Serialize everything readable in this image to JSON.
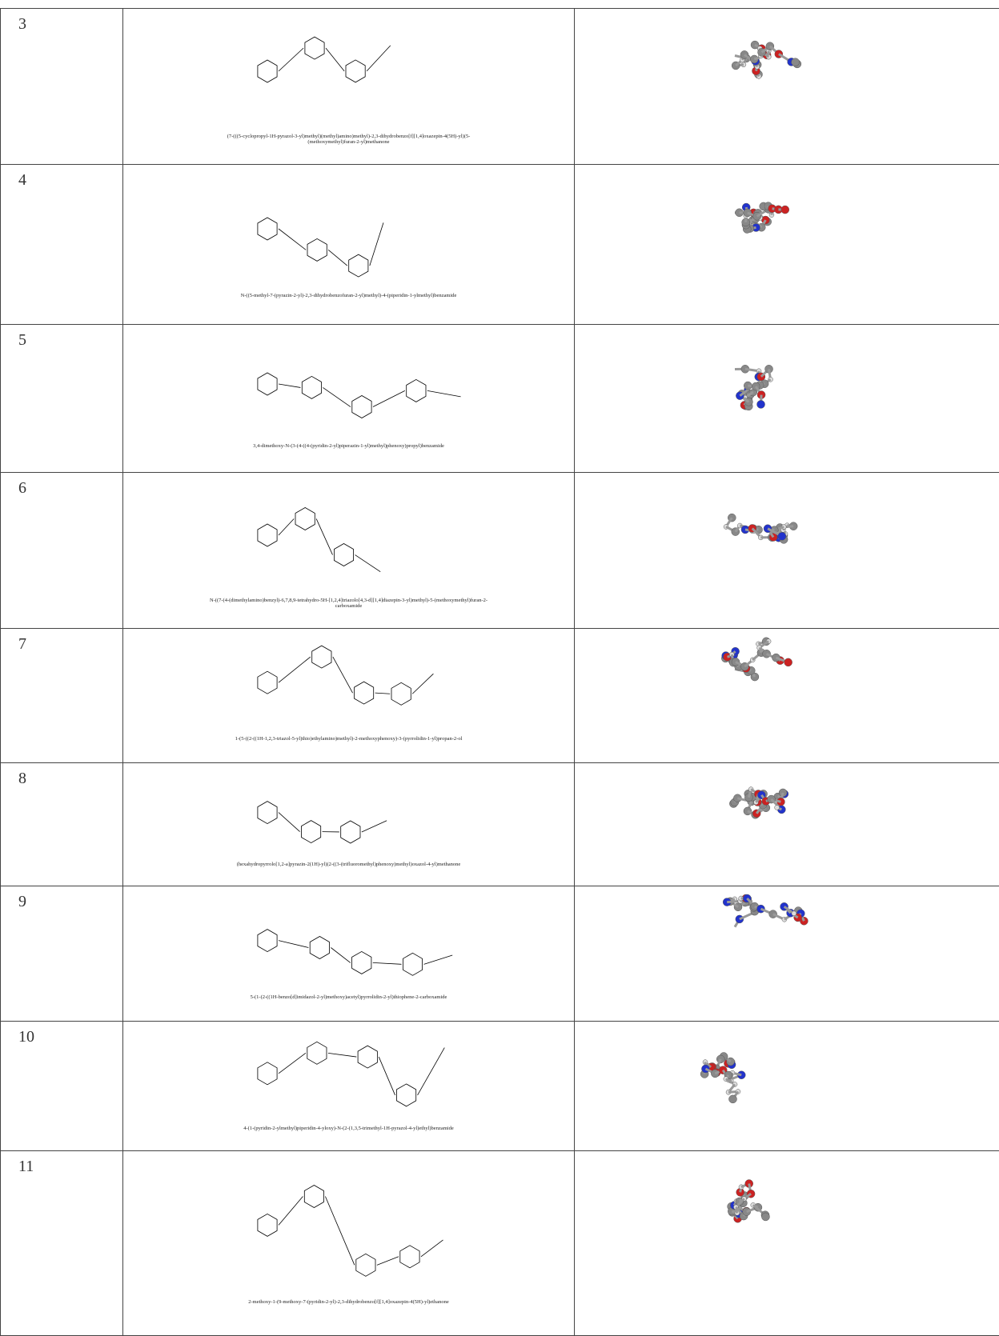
{
  "table": {
    "rows": [
      [
        "3",
        "(7-(((5-cyclopropyl-1H-pyrazol-3-yl)methyl)(methyl)amino)methyl)-2,3-dihydrobenzo[f][1,4]oxazepin-4(5H)-yl)(5-(methoxymethyl)furan-2-yl)methanone"
      ],
      [
        "4",
        "N-((5-methyl-7-(pyrazin-2-yl)-2,3-dihydrobenzofuran-2-yl)methyl)-4-(piperidin-1-ylmethyl)benzamide"
      ],
      [
        "5",
        "3,4-dimethoxy-N-(3-(4-((4-(pyridin-2-yl)piperazin-1-yl)methyl)phenoxy)propyl)benzamide"
      ],
      [
        "6",
        "N-((7-(4-(dimethylamino)benzyl)-6,7,8,9-tetrahydro-5H-[1,2,4]triazolo[4,3-d][1,4]diazepin-3-yl)methyl)-5-(methoxymethyl)furan-2-carboxamide"
      ],
      [
        "7",
        "1-(5-((2-((1H-1,2,3-triazol-5-yl)thio)ethylamino)methyl)-2-methoxyphenoxy)-3-(pyrrolidin-1-yl)propan-2-ol"
      ],
      [
        "8",
        "(hexahydropyrrolo[1,2-a]pyrazin-2(1H)-yl)(2-((3-(trifluoromethyl)phenoxy)methyl)oxazol-4-yl)methanone"
      ],
      [
        "9",
        "5-(1-(2-((1H-benzo[d]imidazol-2-yl)methoxy)acetyl)pyrrolidin-2-yl)thiophene-2-carboxamide"
      ],
      [
        "10",
        "4-(1-(pyridin-2-ylmethyl)piperidin-4-yloxy)-N-(2-(1,3,5-trimethyl-1H-pyrazol-4-yl)ethyl)benzamide"
      ],
      [
        "11",
        "2-methoxy-1-(9-methoxy-7-(pyridin-2-yl)-2,3-dihydrobenzo[f][1,4]oxazepin-4(5H)-yl)ethanone"
      ]
    ]
  }
}
